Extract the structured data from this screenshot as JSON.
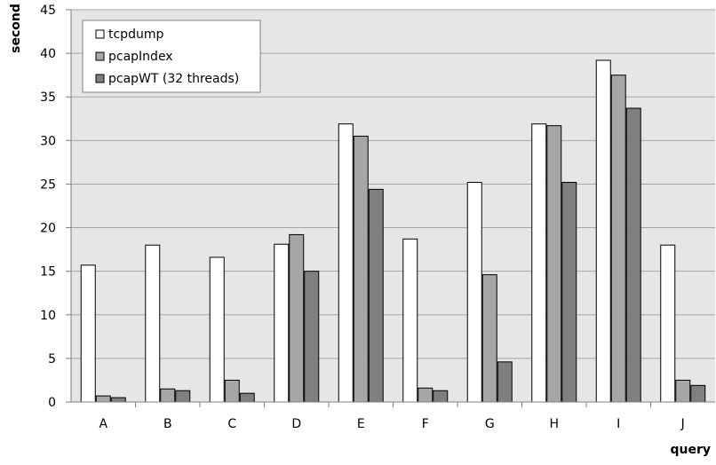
{
  "chart_data": {
    "type": "bar",
    "title": "",
    "xlabel": "query",
    "ylabel": "second",
    "ylim": [
      0,
      45
    ],
    "yticks": [
      0,
      5,
      10,
      15,
      20,
      25,
      30,
      35,
      40,
      45
    ],
    "grid": true,
    "legend_position": "top-left",
    "categories": [
      "A",
      "B",
      "C",
      "D",
      "E",
      "F",
      "G",
      "H",
      "I",
      "J"
    ],
    "series": [
      {
        "name": "tcpdump",
        "color": "#ffffff",
        "values": [
          15.7,
          18.0,
          16.6,
          18.1,
          31.9,
          18.7,
          25.2,
          31.9,
          39.2,
          18.0
        ]
      },
      {
        "name": "pcapIndex",
        "color": "#a6a6a6",
        "values": [
          0.7,
          1.5,
          2.5,
          19.2,
          30.5,
          1.6,
          14.6,
          31.7,
          37.5,
          2.5
        ]
      },
      {
        "name": "pcapWT (32 threads)",
        "color": "#7f7f7f",
        "values": [
          0.5,
          1.3,
          1.0,
          15.0,
          24.4,
          1.3,
          4.6,
          25.2,
          33.7,
          1.9
        ]
      }
    ],
    "colors": {
      "background": "#ffffff",
      "plot_background": "#e6e6e6",
      "grid": "#a6a6a6",
      "bar_stroke": "#000000"
    }
  }
}
